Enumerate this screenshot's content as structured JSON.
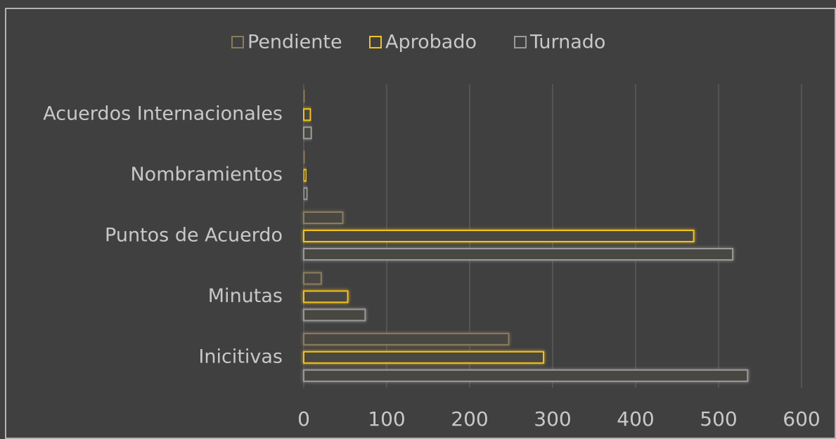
{
  "chart_data": {
    "type": "bar",
    "orientation": "horizontal",
    "categories": [
      "Acuerdos Internacionales",
      "Nombramientos",
      "Puntos de Acuerdo",
      "Minutas",
      "Inicitivas"
    ],
    "series": [
      {
        "name": "Pendiente",
        "color": "#8c7b5e",
        "values": [
          1,
          1,
          47,
          21,
          247
        ]
      },
      {
        "name": "Aprobado",
        "color": "#f2c21e",
        "values": [
          8,
          3,
          470,
          53,
          289
        ]
      },
      {
        "name": "Turnado",
        "color": "#9a9a9a",
        "values": [
          9,
          4,
          517,
          74,
          535
        ]
      }
    ],
    "xlim": [
      0,
      600
    ],
    "xticks": [
      0,
      100,
      200,
      300,
      400,
      500,
      600
    ],
    "grid": true,
    "legend": "top"
  }
}
